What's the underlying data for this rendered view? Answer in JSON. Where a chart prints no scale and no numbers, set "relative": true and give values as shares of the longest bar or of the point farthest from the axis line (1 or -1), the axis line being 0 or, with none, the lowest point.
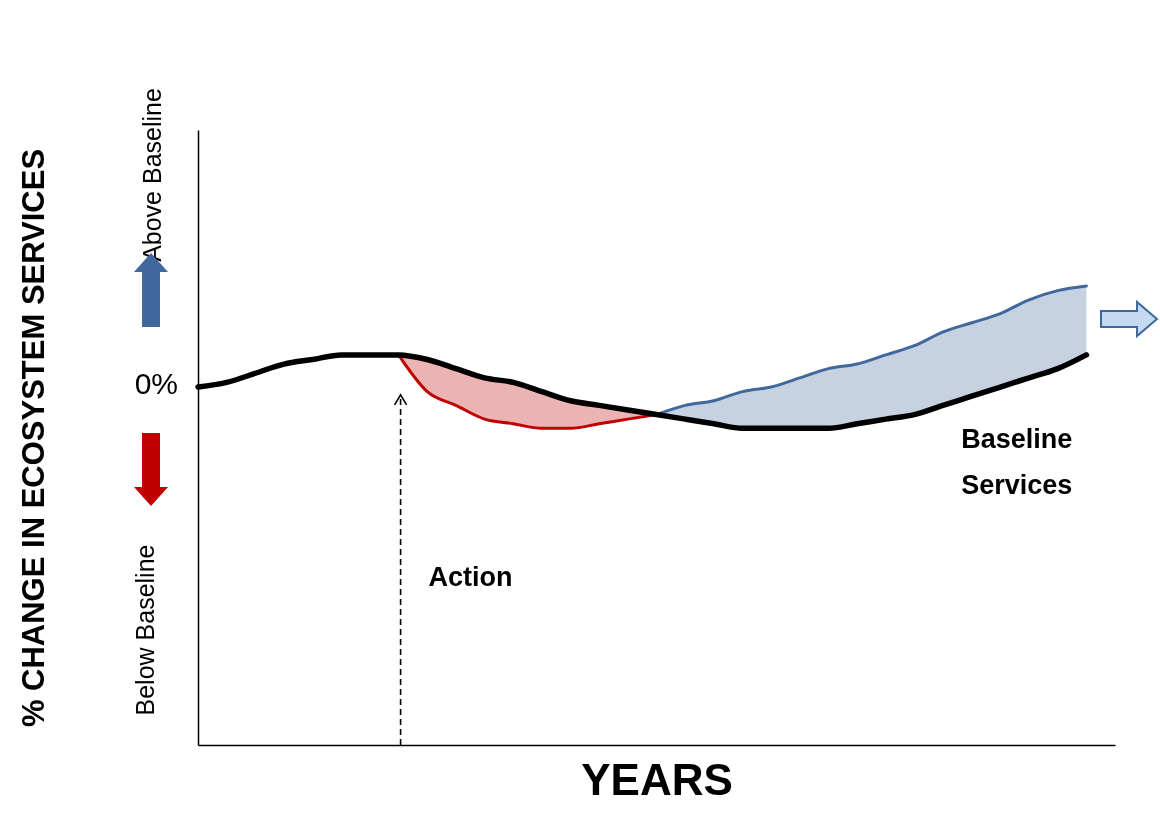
{
  "chart_data": {
    "type": "line",
    "relative": true,
    "xlabel": "YEARS",
    "ylabel": "% CHANGE IN ECOSYSTEM SERVICES",
    "categories": [
      null,
      null,
      null,
      null,
      null,
      null,
      null,
      null,
      null,
      null,
      null,
      null,
      null,
      null,
      null,
      null,
      null,
      null,
      null,
      null,
      null,
      null,
      null,
      null,
      null,
      null,
      null,
      null,
      null,
      null,
      null,
      null
    ],
    "series": [
      {
        "name": "Baseline Services",
        "color": "#000000",
        "values": [
          0.78,
          0.79,
          0.81,
          0.83,
          0.84,
          0.85,
          0.85,
          0.85,
          0.84,
          0.82,
          0.8,
          0.79,
          0.77,
          0.75,
          0.74,
          0.73,
          0.72,
          0.71,
          0.7,
          0.69,
          0.69,
          0.69,
          0.69,
          0.7,
          0.71,
          0.72,
          0.74,
          0.76,
          0.78,
          0.8,
          0.82,
          0.85
        ]
      },
      {
        "color": "#c00000",
        "values": [
          null,
          null,
          null,
          null,
          null,
          null,
          null,
          0.85,
          0.77,
          0.74,
          0.71,
          0.7,
          0.69,
          0.69,
          0.7,
          0.71,
          0.72,
          null,
          null,
          null,
          null,
          null,
          null,
          null,
          null,
          null,
          null,
          null,
          null,
          null,
          null,
          null
        ],
        "lower": [
          null,
          null,
          null,
          null,
          null,
          null,
          null,
          0.85,
          0.77,
          0.74,
          0.71,
          0.7,
          0.69,
          0.69,
          0.7,
          0.71,
          0.72,
          null,
          null,
          null,
          null,
          null,
          null,
          null,
          null,
          null,
          null,
          null,
          null,
          null,
          null,
          null
        ],
        "upper": [
          null,
          null,
          null,
          null,
          null,
          null,
          null,
          0.85,
          0.84,
          0.82,
          0.8,
          0.79,
          0.77,
          0.75,
          0.74,
          0.73,
          0.72,
          null,
          null,
          null,
          null,
          null,
          null,
          null,
          null,
          null,
          null,
          null,
          null,
          null,
          null,
          null
        ]
      },
      {
        "color": "#41689c",
        "values": [
          null,
          null,
          null,
          null,
          null,
          null,
          null,
          null,
          null,
          null,
          null,
          null,
          null,
          null,
          null,
          null,
          0.72,
          0.74,
          0.75,
          0.77,
          0.78,
          0.8,
          0.82,
          0.83,
          0.85,
          0.87,
          0.9,
          0.92,
          0.94,
          0.97,
          0.99,
          1.0
        ],
        "lower": [
          null,
          null,
          null,
          null,
          null,
          null,
          null,
          null,
          null,
          null,
          null,
          null,
          null,
          null,
          null,
          null,
          0.72,
          0.71,
          0.7,
          0.69,
          0.69,
          0.69,
          0.69,
          0.7,
          0.71,
          0.72,
          0.74,
          0.76,
          0.78,
          0.8,
          0.82,
          0.85
        ],
        "upper": [
          null,
          null,
          null,
          null,
          null,
          null,
          null,
          null,
          null,
          null,
          null,
          null,
          null,
          null,
          null,
          null,
          0.72,
          0.74,
          0.75,
          0.77,
          0.78,
          0.8,
          0.82,
          0.83,
          0.85,
          0.87,
          0.9,
          0.92,
          0.94,
          0.97,
          0.99,
          1.0
        ]
      }
    ],
    "annotations": [
      "Action",
      "0%",
      "Above Baseline",
      "Below Baseline"
    ]
  }
}
